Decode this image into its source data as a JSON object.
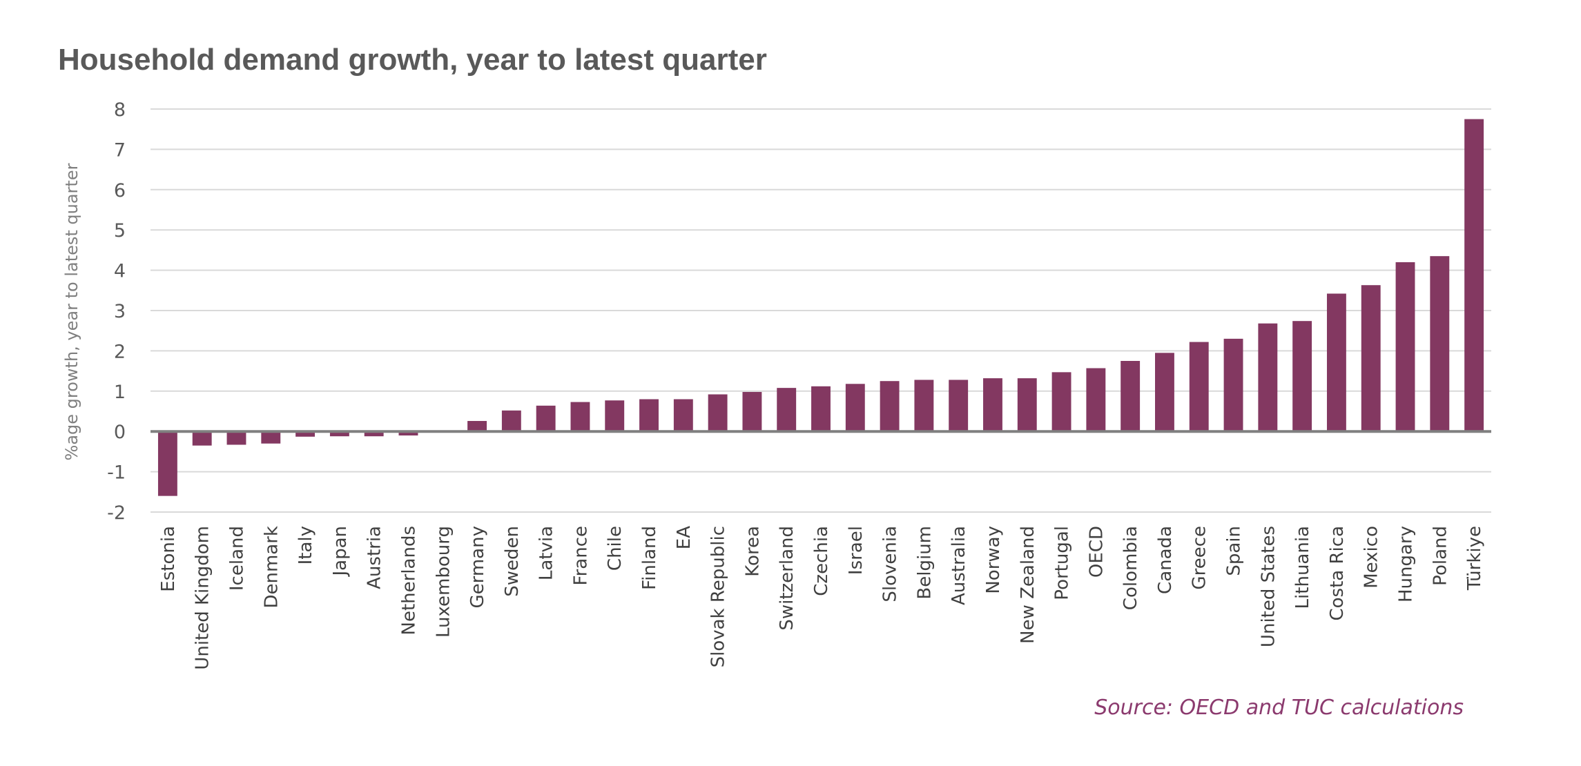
{
  "chart_data": {
    "type": "bar",
    "title": "Household demand growth, year to latest quarter",
    "ylabel": "%age growth, year to latest quarter",
    "xlabel": "",
    "ylim": [
      -2,
      8
    ],
    "yticks": [
      -2,
      -1,
      0,
      1,
      2,
      3,
      4,
      5,
      6,
      7,
      8
    ],
    "grid": true,
    "bar_color": "#833861",
    "categories": [
      "Estonia",
      "United Kingdom",
      "Iceland",
      "Denmark",
      "Italy",
      "Japan",
      "Austria",
      "Netherlands",
      "Luxembourg",
      "Germany",
      "Sweden",
      "Latvia",
      "France",
      "Chile",
      "Finland",
      "EA",
      "Slovak Republic",
      "Korea",
      "Switzerland",
      "Czechia",
      "Israel",
      "Slovenia",
      "Belgium",
      "Australia",
      "Norway",
      "New Zealand",
      "Portugal",
      "OECD",
      "Colombia",
      "Canada",
      "Greece",
      "Spain",
      "United States",
      "Lithuania",
      "Costa Rica",
      "Mexico",
      "Hungary",
      "Poland",
      "Türkiye"
    ],
    "values": [
      -1.6,
      -0.35,
      -0.33,
      -0.3,
      -0.13,
      -0.12,
      -0.12,
      -0.1,
      0.0,
      0.26,
      0.52,
      0.64,
      0.73,
      0.77,
      0.8,
      0.8,
      0.92,
      0.98,
      1.08,
      1.12,
      1.18,
      1.25,
      1.28,
      1.28,
      1.32,
      1.32,
      1.47,
      1.57,
      1.75,
      1.95,
      2.22,
      2.3,
      2.68,
      2.74,
      3.42,
      3.63,
      4.2,
      4.35,
      7.75
    ]
  },
  "source": "Source: OECD and TUC calculations"
}
